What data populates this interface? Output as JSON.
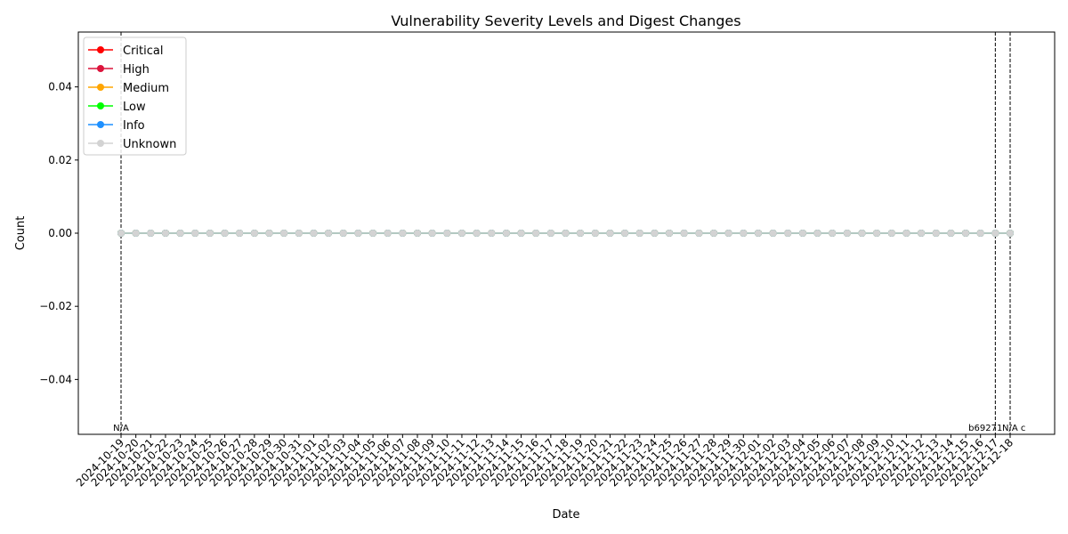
{
  "chart_data": {
    "type": "line",
    "title": "Vulnerability Severity Levels and Digest Changes",
    "xlabel": "Date",
    "ylabel": "Count",
    "ylim": [
      -0.055,
      0.055
    ],
    "yticks": [
      "−0.04",
      "−0.02",
      "0.00",
      "0.02",
      "0.04"
    ],
    "ytick_values": [
      -0.04,
      -0.02,
      0.0,
      0.02,
      0.04
    ],
    "grid": false,
    "legend_position": "top-left",
    "x": [
      "2024-10-19",
      "2024-10-20",
      "2024-10-21",
      "2024-10-22",
      "2024-10-23",
      "2024-10-24",
      "2024-10-25",
      "2024-10-26",
      "2024-10-27",
      "2024-10-28",
      "2024-10-29",
      "2024-10-30",
      "2024-10-31",
      "2024-11-01",
      "2024-11-02",
      "2024-11-03",
      "2024-11-04",
      "2024-11-05",
      "2024-11-06",
      "2024-11-07",
      "2024-11-08",
      "2024-11-09",
      "2024-11-10",
      "2024-11-11",
      "2024-11-12",
      "2024-11-13",
      "2024-11-14",
      "2024-11-15",
      "2024-11-16",
      "2024-11-17",
      "2024-11-18",
      "2024-11-19",
      "2024-11-20",
      "2024-11-21",
      "2024-11-22",
      "2024-11-23",
      "2024-11-24",
      "2024-11-25",
      "2024-11-26",
      "2024-11-27",
      "2024-11-28",
      "2024-11-29",
      "2024-11-30",
      "2024-12-01",
      "2024-12-02",
      "2024-12-03",
      "2024-12-04",
      "2024-12-05",
      "2024-12-06",
      "2024-12-07",
      "2024-12-08",
      "2024-12-09",
      "2024-12-10",
      "2024-12-11",
      "2024-12-12",
      "2024-12-13",
      "2024-12-14",
      "2024-12-15",
      "2024-12-16",
      "2024-12-17",
      "2024-12-18"
    ],
    "series": [
      {
        "name": "Critical",
        "color": "#ff0000",
        "value": 0
      },
      {
        "name": "High",
        "color": "#dc143c",
        "value": 0
      },
      {
        "name": "Medium",
        "color": "#ffa500",
        "value": 0
      },
      {
        "name": "Low",
        "color": "#00ff00",
        "value": 0
      },
      {
        "name": "Info",
        "color": "#1e90ff",
        "value": 0
      },
      {
        "name": "Unknown",
        "color": "#d3d3d3",
        "value": 0
      }
    ],
    "digest_changes": [
      {
        "date": "2024-10-19",
        "label": "N/A"
      },
      {
        "date": "2024-12-17",
        "label": "b69271"
      },
      {
        "date": "2024-12-18",
        "label": "N/A c"
      }
    ]
  }
}
